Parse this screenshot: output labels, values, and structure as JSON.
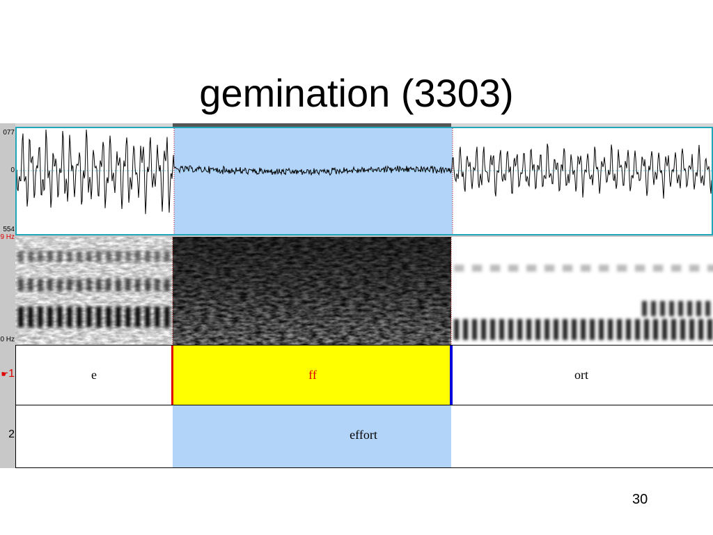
{
  "slide": {
    "title": "gemination (3303)",
    "page_number": "30"
  },
  "waveform": {
    "y_max_label": "077",
    "y_zero_label": "0",
    "y_min_label": "554"
  },
  "spectrogram": {
    "freq_top_label": "9 Hz",
    "freq_bottom_label": "0 Hz"
  },
  "tiers": [
    {
      "number": "1",
      "number_color": "#e00000",
      "intervals": [
        {
          "text": "e",
          "color": "#000000"
        },
        {
          "text": "ff",
          "color": "#e00000",
          "highlight": "#ffff00"
        },
        {
          "text": "ort",
          "color": "#000000"
        }
      ]
    },
    {
      "number": "2",
      "number_color": "#000000",
      "intervals": [
        {
          "text": "effort",
          "color": "#000000"
        }
      ]
    }
  ],
  "selection": {
    "color": "#b3d4f9",
    "marker_left_color": "#e00000",
    "marker_right_color": "#0000dd",
    "cursor_color": "#cc0000"
  },
  "icons": {
    "tier1_pointer": "pointing-hand-icon"
  }
}
